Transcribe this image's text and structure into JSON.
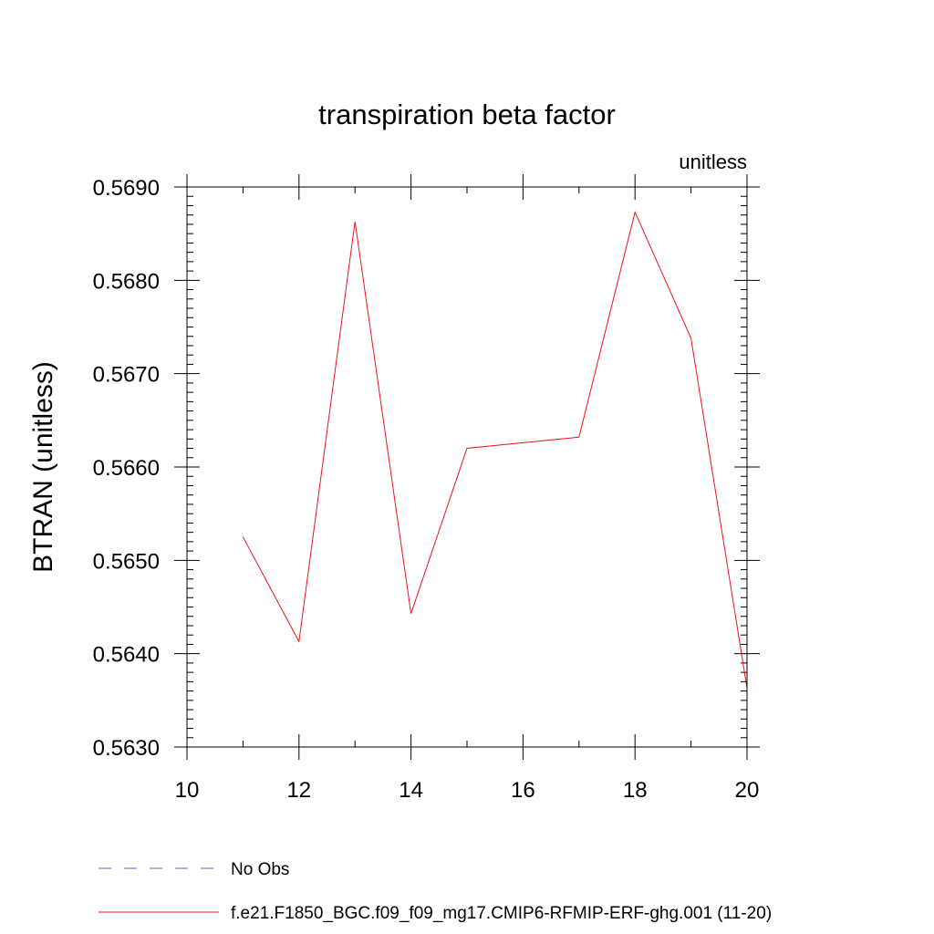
{
  "chart_data": {
    "type": "line",
    "title": "transpiration beta factor",
    "units_label": "unitless",
    "ylabel": "BTRAN  (unitless)",
    "xlabel": "",
    "xlim": [
      10,
      20
    ],
    "ylim": [
      0.563,
      0.569
    ],
    "x_ticks": [
      10,
      12,
      14,
      16,
      18,
      20
    ],
    "x_tick_labels": [
      "10",
      "12",
      "14",
      "16",
      "18",
      "20"
    ],
    "y_ticks": [
      0.563,
      0.564,
      0.565,
      0.566,
      0.567,
      0.568,
      0.569
    ],
    "y_tick_labels": [
      "0.5630",
      "0.5640",
      "0.5650",
      "0.5660",
      "0.5670",
      "0.5680",
      "0.5690"
    ],
    "x_minor_step": 1,
    "y_minor_step": 0.0001,
    "grid": false,
    "series": [
      {
        "name": "f.e21.F1850_BGC.f09_f09_mg17.CMIP6-RFMIP-ERF-ghg.001 (11-20)",
        "color": "#e8141c",
        "dash": "solid",
        "x": [
          11,
          12,
          13,
          14,
          15,
          16,
          17,
          18,
          19,
          20
        ],
        "y": [
          0.56525,
          0.56413,
          0.56863,
          0.56443,
          0.5662,
          0.56626,
          0.56632,
          0.56873,
          0.56738,
          0.56363
        ]
      }
    ],
    "legend": {
      "placement": "bottom",
      "entries": [
        {
          "label": "No Obs",
          "color": "#6c5fb0",
          "dash": "dashed"
        },
        {
          "label": "f.e21.F1850_BGC.f09_f09_mg17.CMIP6-RFMIP-ERF-ghg.001 (11-20)",
          "color": "#e8141c",
          "dash": "solid"
        }
      ]
    }
  }
}
